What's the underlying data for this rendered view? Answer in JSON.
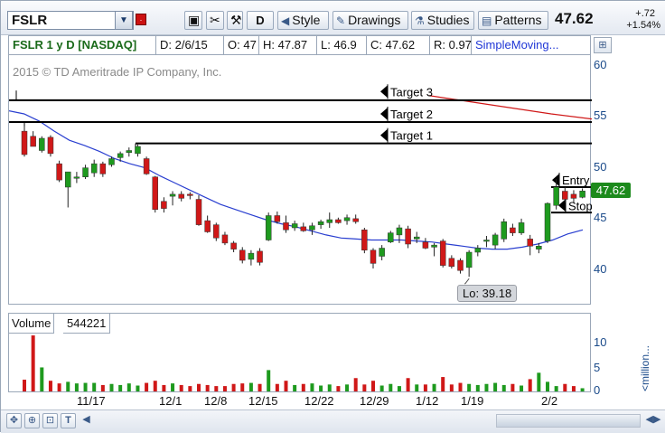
{
  "toolbar": {
    "symbol": "FSLR",
    "link_badge": "·",
    "buttons": {
      "d_label": "D",
      "style_label": "Style",
      "drawings_label": "Drawings",
      "studies_label": "Studies",
      "patterns_label": "Patterns"
    },
    "last_price": "47.62",
    "change": "+.72",
    "change_pct": "+1.54%"
  },
  "header": {
    "title": "FSLR 1 y D [NASDAQ]",
    "date": "D: 2/6/15",
    "open": "O: 47",
    "high": "H: 47.87",
    "low": "L: 46.9",
    "close": "C: 47.62",
    "range": "R: 0.97",
    "study": "SimpleMoving..."
  },
  "chart": {
    "copyright": "2015 © TD Ameritrade IP Company, Inc.",
    "price_tag": "47.62",
    "low_label": "Lo: 39.18",
    "y_labels": [
      "60",
      "55",
      "50",
      "45",
      "40"
    ],
    "x_labels": [
      "11/17",
      "12/1",
      "12/8",
      "12/15",
      "12/22",
      "12/29",
      "1/12",
      "1/19",
      "2/2"
    ],
    "colors": {
      "up": "#1e9a1e",
      "down": "#d01818",
      "sma_short": "#2a3fd0",
      "sma_long": "#d01818"
    }
  },
  "drawings": {
    "target3": "Target 3",
    "target2": "Target 2",
    "target1": "Target 1",
    "entry": "Entry",
    "stop": "Stop"
  },
  "volume": {
    "label": "Volume",
    "value": "544221",
    "y_labels": [
      "10",
      "5",
      "0"
    ],
    "unit": "<million..."
  },
  "chart_data": {
    "type": "candlestick",
    "ylim": [
      35.5,
      61
    ],
    "volume_ylim": [
      0,
      13
    ],
    "sma_short": [
      55.5,
      55.2,
      54.5,
      53.5,
      52.6,
      52.1,
      51.5,
      50.8,
      50.3,
      49.9,
      49.1,
      48.4,
      47.7,
      47.0,
      46.3,
      45.8,
      45.3,
      44.8,
      44.4,
      44.1,
      43.7,
      43.3,
      43.0,
      42.9,
      42.8,
      42.8,
      42.8,
      42.7,
      42.6,
      42.4,
      42.2,
      42.0,
      41.9,
      41.9,
      42.1,
      42.4,
      42.8,
      43.4,
      43.8
    ],
    "sma_long": [
      57.0,
      56.4,
      55.8,
      55.2,
      54.7
    ],
    "candles": [
      {
        "o": 53.5,
        "h": 54.0,
        "l": 51.0,
        "c": 51.2
      },
      {
        "o": 53.0,
        "h": 53.5,
        "l": 52.0,
        "c": 52.0
      },
      {
        "o": 51.6,
        "h": 53.0,
        "l": 51.4,
        "c": 52.8
      },
      {
        "o": 52.9,
        "h": 53.1,
        "l": 51.0,
        "c": 51.3
      },
      {
        "o": 50.3,
        "h": 50.6,
        "l": 48.5,
        "c": 48.7
      },
      {
        "o": 48.0,
        "h": 49.5,
        "l": 46.0,
        "c": 49.5
      },
      {
        "o": 49.0,
        "h": 49.5,
        "l": 48.4,
        "c": 49.0
      },
      {
        "o": 49.0,
        "h": 50.2,
        "l": 48.8,
        "c": 49.9
      },
      {
        "o": 49.4,
        "h": 50.7,
        "l": 49.0,
        "c": 50.3
      },
      {
        "o": 50.3,
        "h": 50.5,
        "l": 49.0,
        "c": 49.3
      },
      {
        "o": 50.2,
        "h": 51.0,
        "l": 50.0,
        "c": 50.8
      },
      {
        "o": 50.9,
        "h": 51.5,
        "l": 50.5,
        "c": 51.3
      },
      {
        "o": 51.4,
        "h": 51.9,
        "l": 51.0,
        "c": 51.6
      },
      {
        "o": 51.3,
        "h": 52.2,
        "l": 51.0,
        "c": 52.0
      },
      {
        "o": 50.8,
        "h": 51.0,
        "l": 49.2,
        "c": 49.3
      },
      {
        "o": 49.0,
        "h": 49.1,
        "l": 45.5,
        "c": 45.8
      },
      {
        "o": 46.6,
        "h": 47.0,
        "l": 45.5,
        "c": 45.9
      },
      {
        "o": 47.1,
        "h": 47.6,
        "l": 46.2,
        "c": 47.3
      },
      {
        "o": 47.3,
        "h": 47.6,
        "l": 46.6,
        "c": 46.9
      },
      {
        "o": 47.3,
        "h": 47.5,
        "l": 46.8,
        "c": 47.2
      },
      {
        "o": 46.8,
        "h": 47.2,
        "l": 44.2,
        "c": 44.3
      },
      {
        "o": 44.7,
        "h": 45.2,
        "l": 43.5,
        "c": 43.6
      },
      {
        "o": 44.3,
        "h": 44.5,
        "l": 42.7,
        "c": 43.0
      },
      {
        "o": 43.3,
        "h": 43.6,
        "l": 42.3,
        "c": 42.5
      },
      {
        "o": 42.5,
        "h": 42.7,
        "l": 41.6,
        "c": 41.9
      },
      {
        "o": 41.8,
        "h": 42.1,
        "l": 40.5,
        "c": 40.8
      },
      {
        "o": 40.9,
        "h": 41.8,
        "l": 40.3,
        "c": 41.5
      },
      {
        "o": 41.7,
        "h": 42.0,
        "l": 40.3,
        "c": 40.6
      },
      {
        "o": 42.8,
        "h": 45.5,
        "l": 42.7,
        "c": 45.2
      },
      {
        "o": 45.2,
        "h": 45.6,
        "l": 44.4,
        "c": 44.6
      },
      {
        "o": 44.5,
        "h": 45.2,
        "l": 43.5,
        "c": 43.8
      },
      {
        "o": 44.0,
        "h": 44.7,
        "l": 43.7,
        "c": 44.4
      },
      {
        "o": 44.1,
        "h": 44.5,
        "l": 43.6,
        "c": 43.7
      },
      {
        "o": 43.8,
        "h": 44.5,
        "l": 43.3,
        "c": 44.2
      },
      {
        "o": 44.3,
        "h": 44.8,
        "l": 43.9,
        "c": 44.6
      },
      {
        "o": 44.5,
        "h": 45.5,
        "l": 44.0,
        "c": 44.8
      },
      {
        "o": 44.8,
        "h": 45.0,
        "l": 44.4,
        "c": 44.5
      },
      {
        "o": 44.7,
        "h": 45.3,
        "l": 44.3,
        "c": 45.0
      },
      {
        "o": 44.9,
        "h": 45.3,
        "l": 44.4,
        "c": 44.6
      },
      {
        "o": 43.8,
        "h": 44.0,
        "l": 41.5,
        "c": 41.8
      },
      {
        "o": 41.8,
        "h": 42.0,
        "l": 40.0,
        "c": 40.5
      },
      {
        "o": 41.2,
        "h": 42.3,
        "l": 40.8,
        "c": 42.0
      },
      {
        "o": 42.6,
        "h": 43.7,
        "l": 42.5,
        "c": 43.5
      },
      {
        "o": 43.3,
        "h": 44.3,
        "l": 42.5,
        "c": 44.0
      },
      {
        "o": 43.9,
        "h": 44.2,
        "l": 42.0,
        "c": 42.4
      },
      {
        "o": 42.9,
        "h": 43.6,
        "l": 42.5,
        "c": 43.1
      },
      {
        "o": 42.6,
        "h": 43.0,
        "l": 41.9,
        "c": 42.0
      },
      {
        "o": 42.1,
        "h": 42.5,
        "l": 41.2,
        "c": 42.3
      },
      {
        "o": 42.7,
        "h": 42.9,
        "l": 40.1,
        "c": 40.3
      },
      {
        "o": 41.0,
        "h": 41.3,
        "l": 40.0,
        "c": 40.2
      },
      {
        "o": 40.8,
        "h": 41.0,
        "l": 39.5,
        "c": 39.8
      },
      {
        "o": 40.1,
        "h": 41.8,
        "l": 39.18,
        "c": 41.6
      },
      {
        "o": 41.6,
        "h": 42.3,
        "l": 41.2,
        "c": 42.0
      },
      {
        "o": 42.7,
        "h": 43.2,
        "l": 42.1,
        "c": 42.8
      },
      {
        "o": 42.3,
        "h": 43.5,
        "l": 41.9,
        "c": 43.3
      },
      {
        "o": 42.9,
        "h": 44.9,
        "l": 42.6,
        "c": 44.6
      },
      {
        "o": 44.0,
        "h": 44.4,
        "l": 43.2,
        "c": 43.5
      },
      {
        "o": 43.5,
        "h": 44.9,
        "l": 43.3,
        "c": 44.5
      },
      {
        "o": 42.9,
        "h": 43.3,
        "l": 41.3,
        "c": 42.2
      },
      {
        "o": 41.9,
        "h": 42.5,
        "l": 41.5,
        "c": 42.2
      },
      {
        "o": 42.7,
        "h": 46.5,
        "l": 42.5,
        "c": 46.4
      },
      {
        "o": 46.2,
        "h": 48.8,
        "l": 45.8,
        "c": 48.0
      },
      {
        "o": 47.6,
        "h": 48.0,
        "l": 46.5,
        "c": 46.8
      },
      {
        "o": 47.3,
        "h": 47.7,
        "l": 46.4,
        "c": 46.9
      },
      {
        "o": 47.0,
        "h": 47.87,
        "l": 46.9,
        "c": 47.62
      }
    ],
    "volume": [
      2.2,
      10.5,
      4.5,
      2.0,
      1.5,
      1.8,
      1.5,
      1.6,
      1.6,
      1.2,
      1.4,
      1.2,
      1.5,
      1.1,
      1.6,
      2.0,
      1.2,
      1.5,
      1.2,
      1.0,
      1.4,
      1.2,
      1.0,
      1.0,
      1.4,
      1.5,
      1.6,
      1.4,
      4.0,
      1.4,
      2.0,
      1.2,
      1.4,
      1.5,
      1.1,
      1.3,
      1.0,
      1.3,
      2.5,
      1.3,
      2.0,
      1.1,
      1.4,
      1.0,
      2.5,
      1.3,
      1.3,
      1.4,
      2.7,
      1.3,
      1.6,
      1.4,
      1.2,
      1.4,
      1.6,
      1.2,
      1.4,
      1.1,
      2.3,
      3.5,
      1.8,
      1.0,
      1.4,
      1.0,
      0.6
    ]
  }
}
